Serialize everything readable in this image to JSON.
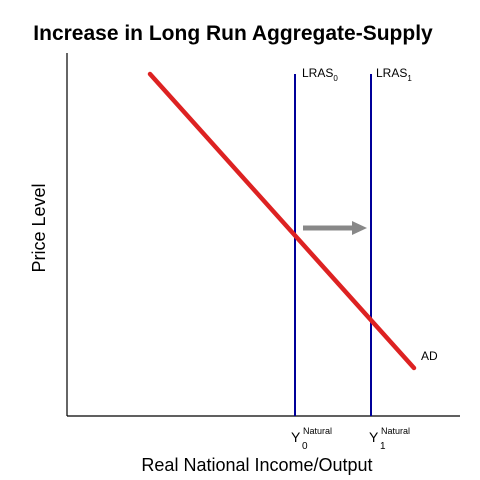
{
  "title": "Increase in Long Run Aggregate-Supply",
  "y_axis_label": "Price Level",
  "x_axis_label": "Real National Income/Output",
  "curves": {
    "lras0": {
      "base": "LRAS",
      "sub": "0",
      "color": "#000099"
    },
    "lras1": {
      "base": "LRAS",
      "sub": "1",
      "color": "#000099"
    },
    "ad": {
      "label": "AD",
      "color": "#dd2222"
    }
  },
  "x_ticks": {
    "y0": {
      "main": "Y",
      "sup": "Natural",
      "sub": "0"
    },
    "y1": {
      "main": "Y",
      "sup": "Natural",
      "sub": "1"
    }
  },
  "shift_arrow": {
    "color": "#888888",
    "direction": "right"
  }
}
